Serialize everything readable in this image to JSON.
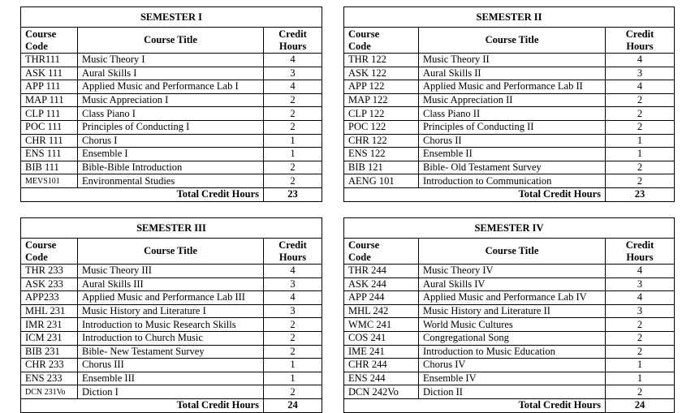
{
  "headers": {
    "code": "Course Code",
    "code_l1": "Course",
    "code_l2": "Code",
    "title": "Course Title",
    "credit_l1": "Credit",
    "credit_l2": "Hours",
    "total": "Total Credit Hours"
  },
  "semesters": [
    {
      "title": "SEMESTER I",
      "total": "23",
      "rows": [
        [
          "THR111",
          "Music Theory I",
          "4"
        ],
        [
          "ASK 111",
          "Aural Skills I",
          "3"
        ],
        [
          "APP 111",
          "Applied Music and Performance Lab I",
          "4"
        ],
        [
          "MAP 111",
          "Music Appreciation I",
          "2"
        ],
        [
          "CLP 111",
          "Class Piano I",
          "2"
        ],
        [
          "POC 111",
          "Principles of Conducting I",
          "2"
        ],
        [
          "CHR 111",
          "Chorus I",
          "1"
        ],
        [
          "ENS 111",
          "Ensemble I",
          "1"
        ],
        [
          "BIB 111",
          "Bible-Bible Introduction",
          "2"
        ],
        [
          "MEVS101",
          "Environmental Studies",
          "2"
        ]
      ]
    },
    {
      "title": "SEMESTER II",
      "total": "23",
      "rows": [
        [
          "THR 122",
          "Music Theory II",
          "4"
        ],
        [
          "ASK 122",
          "Aural Skills II",
          "3"
        ],
        [
          "APP 122",
          "Applied Music and Performance Lab II",
          "4"
        ],
        [
          "MAP 122",
          "Music Appreciation II",
          "2"
        ],
        [
          "CLP 122",
          "Class Piano II",
          "2"
        ],
        [
          "POC 122",
          "Principles of Conducting II",
          "2"
        ],
        [
          "CHR 122",
          "Chorus II",
          "1"
        ],
        [
          "ENS 122",
          "Ensemble II",
          "1"
        ],
        [
          "BIB 121",
          "Bible- Old Testament Survey",
          "2"
        ],
        [
          "AENG 101",
          "Introduction to Communication",
          "2"
        ]
      ]
    },
    {
      "title": "SEMESTER III",
      "total": "24",
      "rows": [
        [
          "THR 233",
          "Music Theory III",
          "4"
        ],
        [
          "ASK 233",
          "Aural Skills III",
          "3"
        ],
        [
          "APP233",
          "Applied Music and Performance Lab III",
          "4"
        ],
        [
          "MHL 231",
          "Music History and Literature I",
          "3"
        ],
        [
          "IMR 231",
          "Introduction to Music Research Skills",
          "2"
        ],
        [
          "ICM 231",
          "Introduction to Church Music",
          "2"
        ],
        [
          "BIB 231",
          "Bible- New Testament Survey",
          "2"
        ],
        [
          "CHR 233",
          "Chorus III",
          "1"
        ],
        [
          "ENS 233",
          "Ensemble III",
          "1"
        ],
        [
          "DCN 231Vo",
          "Diction I",
          "2"
        ]
      ]
    },
    {
      "title": "SEMESTER IV",
      "total": "24",
      "rows": [
        [
          "THR 244",
          "Music Theory IV",
          "4"
        ],
        [
          "ASK 244",
          "Aural Skills IV",
          "3"
        ],
        [
          "APP 244",
          "Applied Music and Performance Lab IV",
          "4"
        ],
        [
          "MHL 242",
          "Music History and Literature II",
          "3"
        ],
        [
          "WMC 241",
          "World Music Cultures",
          "2"
        ],
        [
          "COS 241",
          "Congregational Song",
          "2"
        ],
        [
          "IME 241",
          "Introduction to Music Education",
          "2"
        ],
        [
          "CHR 244",
          "Chorus IV",
          "1"
        ],
        [
          "ENS 244",
          "Ensemble IV",
          "1"
        ],
        [
          "DCN 242Vo",
          "Diction II",
          "2"
        ]
      ]
    }
  ]
}
